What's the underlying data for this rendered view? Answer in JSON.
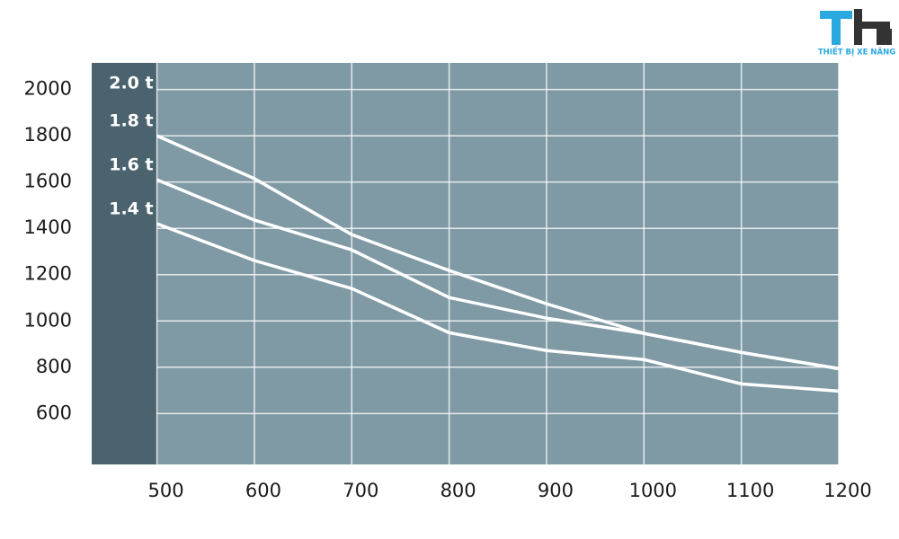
{
  "chart_data": {
    "type": "line",
    "logo_text": "THIẾT BỊ XE NÂNG",
    "x": [
      500,
      600,
      700,
      800,
      900,
      1000,
      1100,
      1200
    ],
    "series": [
      {
        "name": "2.0 t",
        "color": "#ffffff",
        "values": [
          null,
          null,
          null,
          null,
          null,
          null,
          null,
          null
        ]
      },
      {
        "name": "1.8 t",
        "color": "#ffffff",
        "values": [
          1800,
          1615,
          1373,
          1218,
          1074,
          946,
          864,
          794
        ]
      },
      {
        "name": "1.6 t",
        "color": "#ffffff",
        "values": [
          1610,
          1436,
          1307,
          1101,
          1012,
          946,
          864,
          794
        ]
      },
      {
        "name": "1.4 t",
        "color": "#ffffff",
        "values": [
          1420,
          1261,
          1140,
          949,
          872,
          833,
          728,
          697
        ]
      }
    ],
    "xlim": [
      433,
      1200
    ],
    "ylim": [
      380,
      2115
    ],
    "xticks": [
      500,
      600,
      700,
      800,
      900,
      1000,
      1100,
      1200
    ],
    "yticks": [
      600,
      800,
      1000,
      1200,
      1400,
      1600,
      1800,
      2000
    ],
    "grid": true,
    "plot_color": "#7f9aa5",
    "panel_color": "#4a636e"
  }
}
